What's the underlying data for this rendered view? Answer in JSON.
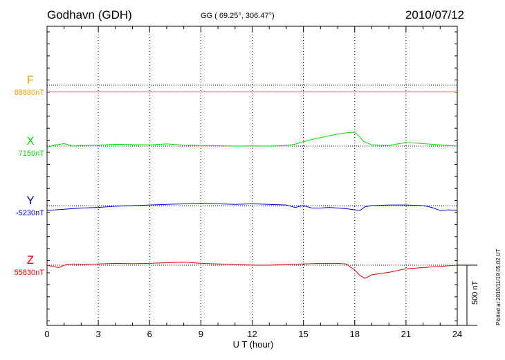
{
  "header": {
    "station": "Godhavn (GDH)",
    "coords": "GG ( 69.25°, 306.47°)",
    "date": "2010/07/12"
  },
  "footer": {
    "xlabel": "U T (hour)",
    "plotted": "Plotted at 2010/11/19 05:02 UT"
  },
  "scale_bar": {
    "label": "500 nT",
    "value_nT": 500
  },
  "chart_data": {
    "type": "line",
    "xlabel": "U T (hour)",
    "xlim": [
      0,
      24
    ],
    "xticks": [
      0,
      3,
      6,
      9,
      12,
      15,
      18,
      21,
      24
    ],
    "grid": true,
    "units": "nT",
    "series": [
      {
        "name": "F",
        "baseline": "88880nT",
        "color": "#f0a000",
        "x": [
          0,
          24
        ],
        "y": [
          -55,
          -55
        ]
      },
      {
        "name": "X",
        "baseline": "7150nT",
        "color": "#00e000",
        "x": [
          0,
          0.5,
          1,
          1.5,
          2,
          3,
          4,
          5,
          6,
          7,
          8,
          9,
          10,
          11,
          12,
          13,
          14,
          14.5,
          15,
          15.5,
          16,
          16.5,
          17,
          17.5,
          18,
          18.3,
          18.5,
          19,
          20,
          21,
          22,
          23,
          24
        ],
        "y": [
          -10,
          10,
          20,
          0,
          5,
          8,
          15,
          12,
          10,
          18,
          8,
          5,
          3,
          0,
          2,
          0,
          5,
          15,
          35,
          55,
          70,
          85,
          100,
          110,
          115,
          75,
          40,
          10,
          5,
          30,
          20,
          10,
          0
        ]
      },
      {
        "name": "Y",
        "baseline": "-5230nT",
        "color": "#0000d0",
        "x": [
          0,
          0.5,
          1,
          1.5,
          2,
          3,
          4,
          5,
          6,
          7,
          8,
          9,
          10,
          11,
          12,
          13,
          14,
          14.5,
          15,
          15.5,
          16,
          16.5,
          17,
          17.5,
          18,
          18.3,
          18.6,
          19,
          20,
          21,
          22,
          22.5,
          23,
          23.5,
          24
        ],
        "y": [
          -40,
          -35,
          -30,
          -25,
          -20,
          -15,
          -5,
          0,
          5,
          10,
          15,
          20,
          15,
          10,
          15,
          10,
          5,
          -15,
          0,
          -20,
          -20,
          -15,
          -20,
          -25,
          -35,
          -40,
          -10,
          0,
          5,
          5,
          0,
          -15,
          -40,
          -35,
          -40
        ]
      },
      {
        "name": "Z",
        "baseline": "55830nT",
        "color": "#e00000",
        "x": [
          0,
          0.3,
          0.7,
          1,
          1.5,
          2,
          3,
          4,
          5,
          6,
          7,
          8,
          9,
          10,
          11,
          12,
          13,
          14,
          15,
          16,
          17,
          17.5,
          18,
          18.3,
          18.6,
          19,
          20,
          21,
          22,
          23,
          24
        ],
        "y": [
          0,
          -10,
          -20,
          0,
          10,
          5,
          10,
          15,
          12,
          15,
          20,
          25,
          15,
          10,
          5,
          0,
          0,
          5,
          10,
          15,
          15,
          10,
          -40,
          -85,
          -110,
          -80,
          -60,
          -30,
          -20,
          -10,
          0
        ]
      }
    ]
  }
}
